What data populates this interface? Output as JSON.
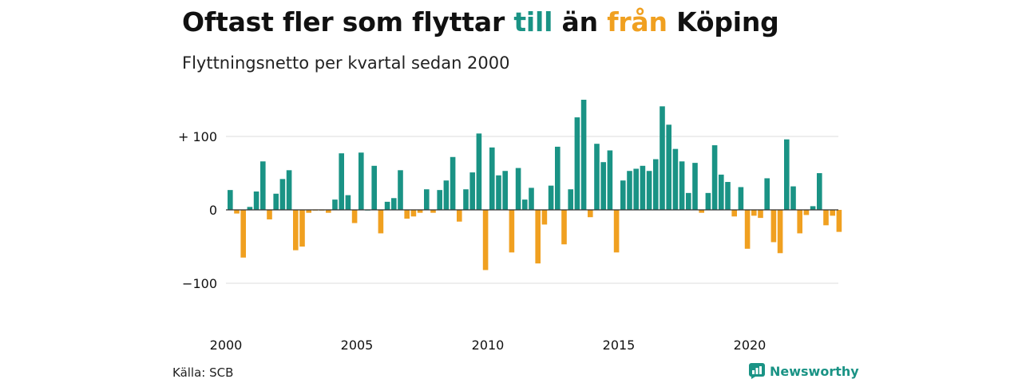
{
  "title": {
    "part1": "Oftast fler som flyttar ",
    "part2": "till",
    "part3": " än ",
    "part4": "från",
    "part5": " Köping"
  },
  "subtitle": "Flyttningsnetto per kvartal sedan 2000",
  "source": "Källa: SCB",
  "brand": {
    "name": "Newsworthy",
    "icon": "newsworthy-logo-icon"
  },
  "colors": {
    "positive": "#1a9385",
    "negative": "#f0a020",
    "grid": "#dddddd",
    "zero_line": "#333333",
    "text": "#111111"
  },
  "chart_data": {
    "type": "bar",
    "title": "Oftast fler som flyttar till än från Köping",
    "subtitle": "Flyttningsnetto per kvartal sedan 2000",
    "xlabel": "",
    "ylabel": "",
    "ylim": [
      -130,
      160
    ],
    "y_ticks": [
      {
        "value": 100,
        "label": "+ 100"
      },
      {
        "value": 0,
        "label": "0"
      },
      {
        "value": -100,
        "label": "−100"
      }
    ],
    "x_tick_labels": [
      "2000",
      "2005",
      "2010",
      "2015",
      "2020"
    ],
    "grid": true,
    "x_start_year": 2000,
    "periods_per_year": 4,
    "values": [
      27,
      -5,
      -65,
      4,
      25,
      66,
      -13,
      22,
      42,
      54,
      -55,
      -50,
      -4,
      -1,
      -1,
      -4,
      14,
      77,
      20,
      -18,
      78,
      0,
      60,
      -32,
      11,
      16,
      54,
      -12,
      -9,
      -4,
      28,
      -4,
      27,
      40,
      72,
      -16,
      28,
      51,
      104,
      -82,
      85,
      47,
      53,
      -58,
      57,
      14,
      30,
      -73,
      -20,
      33,
      86,
      -47,
      28,
      126,
      150,
      -10,
      90,
      65,
      81,
      -58,
      40,
      53,
      56,
      60,
      53,
      69,
      141,
      116,
      83,
      66,
      23,
      64,
      -4,
      23,
      88,
      48,
      38,
      -9,
      31,
      -53,
      -8,
      -11,
      43,
      -44,
      -59,
      96,
      32,
      -32,
      -7,
      5,
      50,
      -21,
      -8,
      -30
    ]
  }
}
